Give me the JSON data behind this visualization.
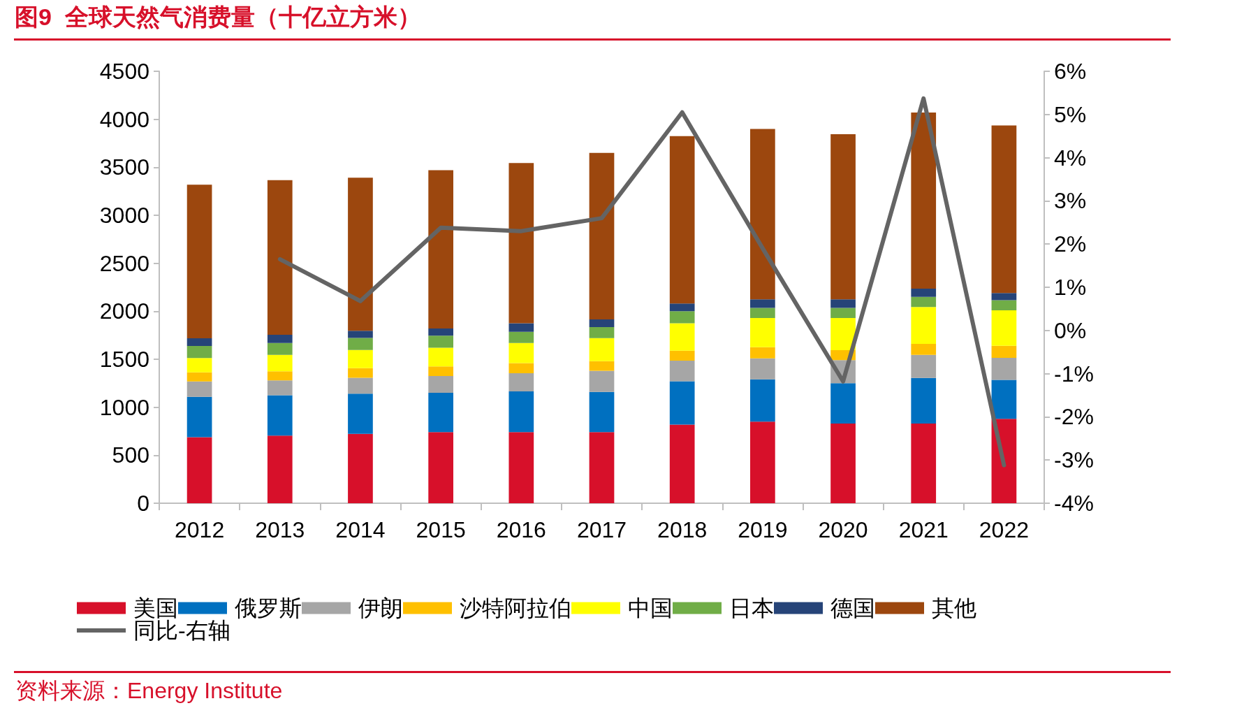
{
  "chart_data": {
    "type": "bar",
    "title": "图9  全球天然气消费量（十亿立方米）",
    "categories": [
      "2012",
      "2013",
      "2014",
      "2015",
      "2016",
      "2017",
      "2018",
      "2019",
      "2020",
      "2021",
      "2022"
    ],
    "stacked": true,
    "series": [
      {
        "name": "美国",
        "color": "#d7102a",
        "values": [
          688,
          705,
          722,
          740,
          740,
          740,
          820,
          850,
          830,
          830,
          880
        ]
      },
      {
        "name": "俄罗斯",
        "color": "#0070c0",
        "values": [
          420,
          420,
          420,
          410,
          425,
          420,
          450,
          440,
          420,
          475,
          405
        ]
      },
      {
        "name": "伊朗",
        "color": "#a6a6a6",
        "values": [
          160,
          155,
          165,
          175,
          190,
          220,
          215,
          220,
          240,
          240,
          230
        ]
      },
      {
        "name": "沙特阿拉伯",
        "color": "#ffc000",
        "values": [
          95,
          95,
          100,
          100,
          105,
          100,
          105,
          115,
          105,
          115,
          125
        ]
      },
      {
        "name": "中国",
        "color": "#ffff00",
        "values": [
          150,
          170,
          190,
          195,
          210,
          240,
          285,
          305,
          335,
          385,
          370
        ]
      },
      {
        "name": "日本",
        "color": "#70ad47",
        "values": [
          125,
          125,
          125,
          125,
          115,
          115,
          125,
          105,
          105,
          105,
          105
        ]
      },
      {
        "name": "德国",
        "color": "#264478",
        "values": [
          80,
          85,
          75,
          75,
          90,
          80,
          80,
          90,
          90,
          85,
          75
        ]
      },
      {
        "name": "其他",
        "color": "#9c470e",
        "values": [
          1600,
          1610,
          1595,
          1650,
          1670,
          1735,
          1745,
          1775,
          1720,
          1835,
          1745
        ]
      },
      {
        "name": "同比-右轴",
        "type": "line",
        "axis": "y2",
        "color": "#646464",
        "values": [
          null,
          1.65,
          0.68,
          2.38,
          2.3,
          2.6,
          5.05,
          1.9,
          -1.18,
          5.37,
          -3.12
        ]
      }
    ],
    "ylim": [
      0,
      4500
    ],
    "yticks": [
      0,
      500,
      1000,
      1500,
      2000,
      2500,
      3000,
      3500,
      4000,
      4500
    ],
    "y2lim": [
      -4,
      6
    ],
    "y2ticks": [
      {
        "value": -4,
        "label": "-4%"
      },
      {
        "value": -3,
        "label": "-3%"
      },
      {
        "value": -2,
        "label": "-2%"
      },
      {
        "value": -1,
        "label": "-1%"
      },
      {
        "value": 0,
        "label": "0%"
      },
      {
        "value": 1,
        "label": "1%"
      },
      {
        "value": 2,
        "label": "2%"
      },
      {
        "value": 3,
        "label": "3%"
      },
      {
        "value": 4,
        "label": "4%"
      },
      {
        "value": 5,
        "label": "5%"
      },
      {
        "value": 6,
        "label": "6%"
      }
    ],
    "grid": false,
    "legend": "bottom",
    "marker": "none",
    "line_style": "solid",
    "annotations": [
      "资料来源：Energy Institute"
    ]
  }
}
